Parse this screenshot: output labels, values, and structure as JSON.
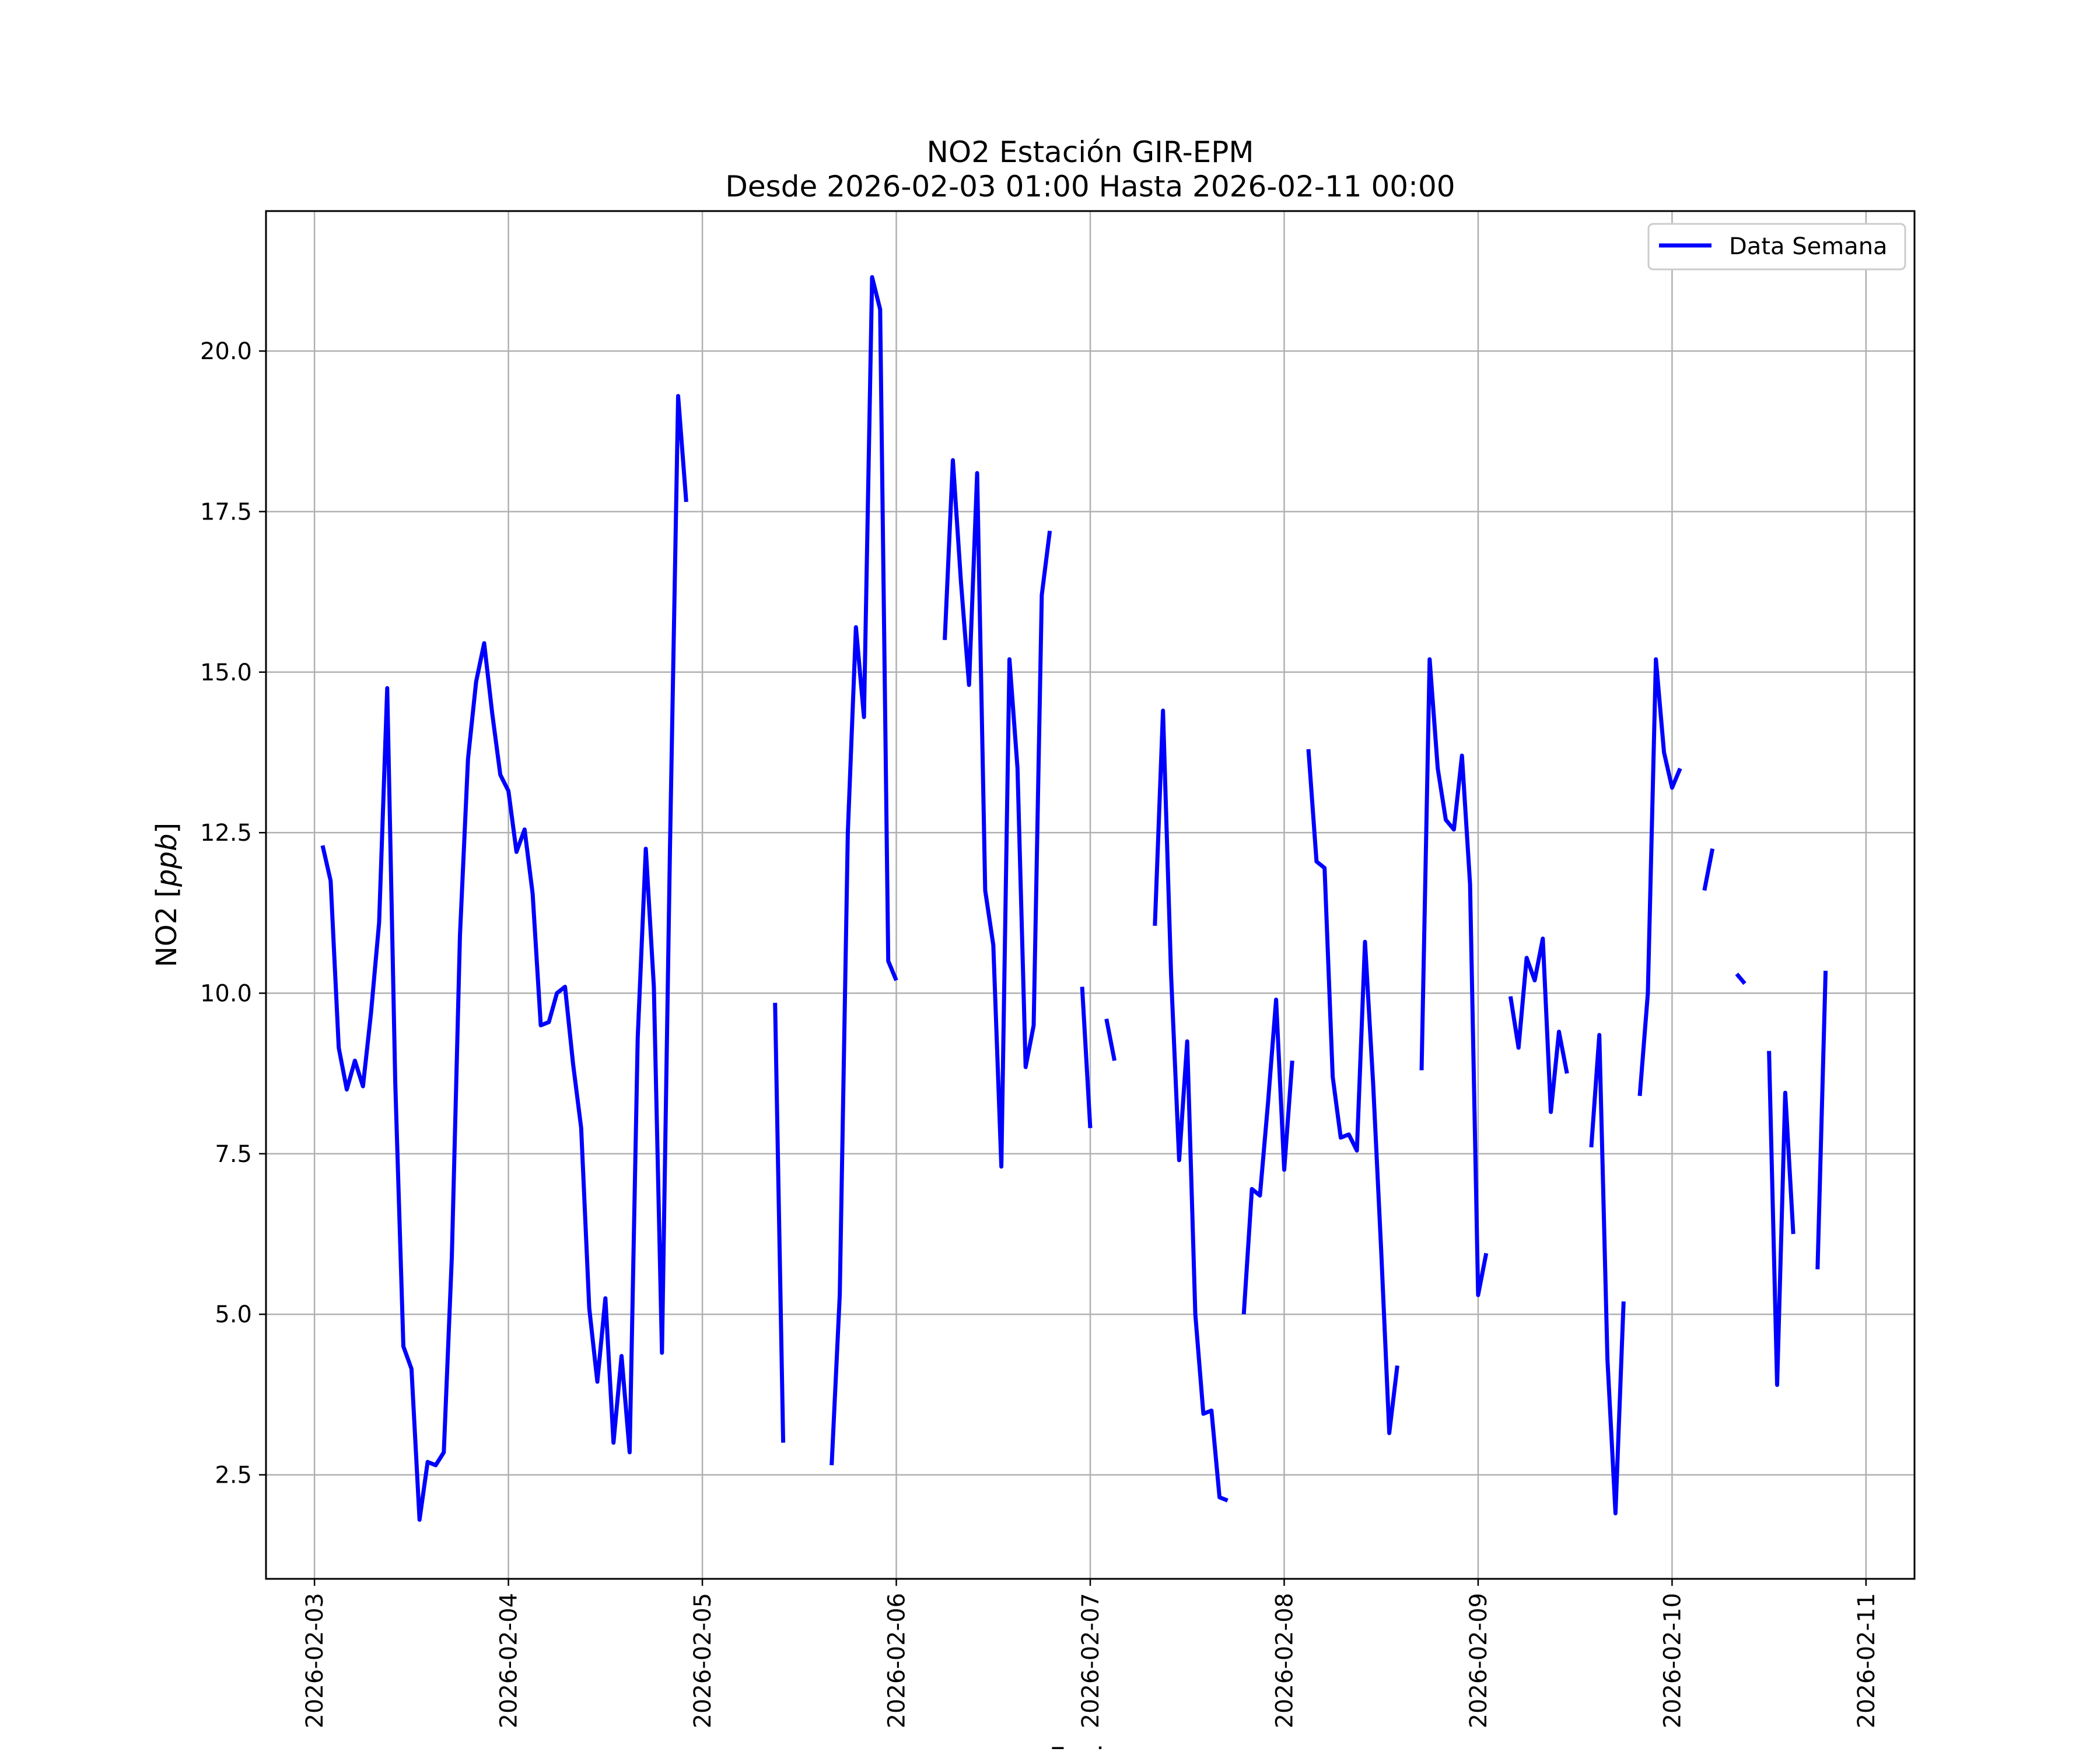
{
  "chart_data": {
    "type": "line",
    "title": "NO2 Estación GIR-EPM",
    "subtitle": "Desde 2026-02-03 01:00 Hasta 2026-02-11 00:00",
    "xlabel": "Fecha",
    "ylabel": "NO2 [ppb]",
    "ylabel_main": "NO2 [",
    "ylabel_unit": "ppb",
    "ylabel_close": "]",
    "xlim": [
      "2026-02-02T18:00",
      "2026-02-11T06:00"
    ],
    "ylim": [
      0.88,
      22.18
    ],
    "x_ticks": [
      "2026-02-03",
      "2026-02-04",
      "2026-02-05",
      "2026-02-06",
      "2026-02-07",
      "2026-02-08",
      "2026-02-09",
      "2026-02-10",
      "2026-02-11"
    ],
    "y_ticks": [
      2.5,
      5.0,
      7.5,
      10.0,
      12.5,
      15.0,
      17.5,
      20.0
    ],
    "y_tick_labels": [
      "2.5",
      "5.0",
      "7.5",
      "10.0",
      "12.5",
      "15.0",
      "17.5",
      "20.0"
    ],
    "grid": true,
    "legend_position": "top-right",
    "colors": {
      "line": "#0000ff",
      "grid": "#b0b0b0",
      "axes": "#000000"
    },
    "series": [
      {
        "name": "Data Semana",
        "segments": [
          [
            [
              "2026-02-03T01:00",
              12.3
            ],
            [
              "2026-02-03T02:00",
              11.75
            ],
            [
              "2026-02-03T03:00",
              9.15
            ],
            [
              "2026-02-03T04:00",
              8.5
            ],
            [
              "2026-02-03T05:00",
              8.95
            ],
            [
              "2026-02-03T06:00",
              8.55
            ],
            [
              "2026-02-03T07:00",
              9.7
            ],
            [
              "2026-02-03T08:00",
              11.1
            ],
            [
              "2026-02-03T09:00",
              14.75
            ],
            [
              "2026-02-03T10:00",
              8.6
            ],
            [
              "2026-02-03T11:00",
              4.5
            ],
            [
              "2026-02-03T12:00",
              4.15
            ],
            [
              "2026-02-03T13:00",
              1.8
            ],
            [
              "2026-02-03T14:00",
              2.7
            ],
            [
              "2026-02-03T15:00",
              2.65
            ],
            [
              "2026-02-03T16:00",
              2.85
            ],
            [
              "2026-02-03T17:00",
              5.9
            ],
            [
              "2026-02-03T18:00",
              10.9
            ],
            [
              "2026-02-03T19:00",
              13.65
            ],
            [
              "2026-02-03T20:00",
              14.85
            ],
            [
              "2026-02-03T21:00",
              15.45
            ],
            [
              "2026-02-03T22:00",
              14.35
            ],
            [
              "2026-02-03T23:00",
              13.4
            ],
            [
              "2026-02-04T00:00",
              13.15
            ],
            [
              "2026-02-04T01:00",
              12.2
            ],
            [
              "2026-02-04T02:00",
              12.55
            ],
            [
              "2026-02-04T03:00",
              11.55
            ],
            [
              "2026-02-04T04:00",
              9.5
            ],
            [
              "2026-02-04T05:00",
              9.55
            ],
            [
              "2026-02-04T06:00",
              10.0
            ],
            [
              "2026-02-04T07:00",
              10.1
            ],
            [
              "2026-02-04T08:00",
              8.9
            ],
            [
              "2026-02-04T09:00",
              7.9
            ],
            [
              "2026-02-04T10:00",
              5.1
            ],
            [
              "2026-02-04T11:00",
              3.95
            ],
            [
              "2026-02-04T12:00",
              5.25
            ],
            [
              "2026-02-04T13:00",
              3.0
            ],
            [
              "2026-02-04T14:00",
              4.35
            ],
            [
              "2026-02-04T15:00",
              2.85
            ],
            [
              "2026-02-04T16:00",
              9.3
            ],
            [
              "2026-02-04T17:00",
              12.25
            ],
            [
              "2026-02-04T18:00",
              10.1
            ],
            [
              "2026-02-04T19:00",
              4.4
            ],
            [
              "2026-02-04T20:00",
              12.3
            ],
            [
              "2026-02-04T21:00",
              19.3
            ],
            [
              "2026-02-04T22:00",
              17.65
            ]
          ],
          [
            [
              "2026-02-05T09:00",
              9.85
            ],
            [
              "2026-02-05T10:00",
              3.0
            ]
          ],
          [
            [
              "2026-02-05T16:00",
              2.65
            ],
            [
              "2026-02-05T17:00",
              5.3
            ],
            [
              "2026-02-05T18:00",
              12.5
            ],
            [
              "2026-02-05T19:00",
              15.7
            ],
            [
              "2026-02-05T20:00",
              14.3
            ],
            [
              "2026-02-05T21:00",
              21.15
            ],
            [
              "2026-02-05T22:00",
              20.65
            ],
            [
              "2026-02-05T23:00",
              10.5
            ],
            [
              "2026-02-06T00:00",
              10.2
            ]
          ],
          [
            [
              "2026-02-06T06:00",
              15.5
            ],
            [
              "2026-02-06T07:00",
              18.3
            ],
            [
              "2026-02-06T08:00",
              16.4
            ],
            [
              "2026-02-06T09:00",
              14.8
            ],
            [
              "2026-02-06T10:00",
              18.1
            ],
            [
              "2026-02-06T11:00",
              11.6
            ],
            [
              "2026-02-06T12:00",
              10.75
            ],
            [
              "2026-02-06T13:00",
              7.3
            ],
            [
              "2026-02-06T14:00",
              15.2
            ],
            [
              "2026-02-06T15:00",
              13.5
            ],
            [
              "2026-02-06T16:00",
              8.85
            ],
            [
              "2026-02-06T17:00",
              9.5
            ],
            [
              "2026-02-06T18:00",
              16.2
            ],
            [
              "2026-02-06T19:00",
              17.2
            ]
          ],
          [
            [
              "2026-02-06T23:00",
              10.1
            ],
            [
              "2026-02-07T00:00",
              7.9
            ]
          ],
          [
            [
              "2026-02-07T02:00",
              9.6
            ],
            [
              "2026-02-07T03:00",
              8.95
            ]
          ],
          [
            [
              "2026-02-07T08:00",
              11.05
            ],
            [
              "2026-02-07T09:00",
              14.4
            ],
            [
              "2026-02-07T10:00",
              10.3
            ],
            [
              "2026-02-07T11:00",
              7.4
            ],
            [
              "2026-02-07T12:00",
              9.25
            ],
            [
              "2026-02-07T13:00",
              5.0
            ],
            [
              "2026-02-07T14:00",
              3.45
            ],
            [
              "2026-02-07T15:00",
              3.5
            ],
            [
              "2026-02-07T16:00",
              2.15
            ],
            [
              "2026-02-07T17:00",
              2.1
            ]
          ],
          [
            [
              "2026-02-07T19:00",
              5.0
            ],
            [
              "2026-02-07T20:00",
              6.95
            ],
            [
              "2026-02-07T21:00",
              6.85
            ],
            [
              "2026-02-07T22:00",
              8.3
            ],
            [
              "2026-02-07T23:00",
              9.9
            ],
            [
              "2026-02-08T00:00",
              7.25
            ],
            [
              "2026-02-08T01:00",
              8.95
            ]
          ],
          [
            [
              "2026-02-08T03:00",
              13.8
            ],
            [
              "2026-02-08T04:00",
              12.05
            ],
            [
              "2026-02-08T05:00",
              11.95
            ],
            [
              "2026-02-08T06:00",
              8.7
            ],
            [
              "2026-02-08T07:00",
              7.75
            ],
            [
              "2026-02-08T08:00",
              7.8
            ],
            [
              "2026-02-08T09:00",
              7.55
            ],
            [
              "2026-02-08T10:00",
              10.8
            ],
            [
              "2026-02-08T11:00",
              8.6
            ],
            [
              "2026-02-08T12:00",
              6.0
            ],
            [
              "2026-02-08T13:00",
              3.15
            ],
            [
              "2026-02-08T14:00",
              4.2
            ]
          ],
          [
            [
              "2026-02-08T17:00",
              8.8
            ],
            [
              "2026-02-08T18:00",
              15.2
            ],
            [
              "2026-02-08T19:00",
              13.5
            ],
            [
              "2026-02-08T20:00",
              12.7
            ],
            [
              "2026-02-08T21:00",
              12.55
            ],
            [
              "2026-02-08T22:00",
              13.7
            ],
            [
              "2026-02-08T23:00",
              11.7
            ],
            [
              "2026-02-09T00:00",
              5.3
            ],
            [
              "2026-02-09T01:00",
              5.95
            ]
          ],
          [
            [
              "2026-02-09T04:00",
              9.95
            ],
            [
              "2026-02-09T05:00",
              9.15
            ],
            [
              "2026-02-09T06:00",
              10.55
            ],
            [
              "2026-02-09T07:00",
              10.2
            ],
            [
              "2026-02-09T08:00",
              10.85
            ],
            [
              "2026-02-09T09:00",
              8.15
            ],
            [
              "2026-02-09T10:00",
              9.4
            ],
            [
              "2026-02-09T11:00",
              8.75
            ]
          ],
          [
            [
              "2026-02-09T14:00",
              7.6
            ],
            [
              "2026-02-09T15:00",
              9.35
            ],
            [
              "2026-02-09T16:00",
              4.3
            ],
            [
              "2026-02-09T17:00",
              1.9
            ],
            [
              "2026-02-09T18:00",
              5.2
            ]
          ],
          [
            [
              "2026-02-09T20:00",
              8.4
            ],
            [
              "2026-02-09T21:00",
              10.0
            ],
            [
              "2026-02-09T22:00",
              15.2
            ],
            [
              "2026-02-09T23:00",
              13.75
            ],
            [
              "2026-02-10T00:00",
              13.2
            ],
            [
              "2026-02-10T01:00",
              13.5
            ]
          ],
          [
            [
              "2026-02-10T04:00",
              11.6
            ],
            [
              "2026-02-10T05:00",
              12.25
            ]
          ],
          [
            [
              "2026-02-10T08:00",
              10.3
            ],
            [
              "2026-02-10T09:00",
              10.15
            ]
          ],
          [
            [
              "2026-02-10T12:00",
              9.1
            ],
            [
              "2026-02-10T13:00",
              3.9
            ],
            [
              "2026-02-10T14:00",
              8.45
            ],
            [
              "2026-02-10T15:00",
              6.25
            ]
          ],
          [
            [
              "2026-02-10T18:00",
              5.7
            ],
            [
              "2026-02-10T19:00",
              10.35
            ]
          ]
        ]
      }
    ]
  }
}
